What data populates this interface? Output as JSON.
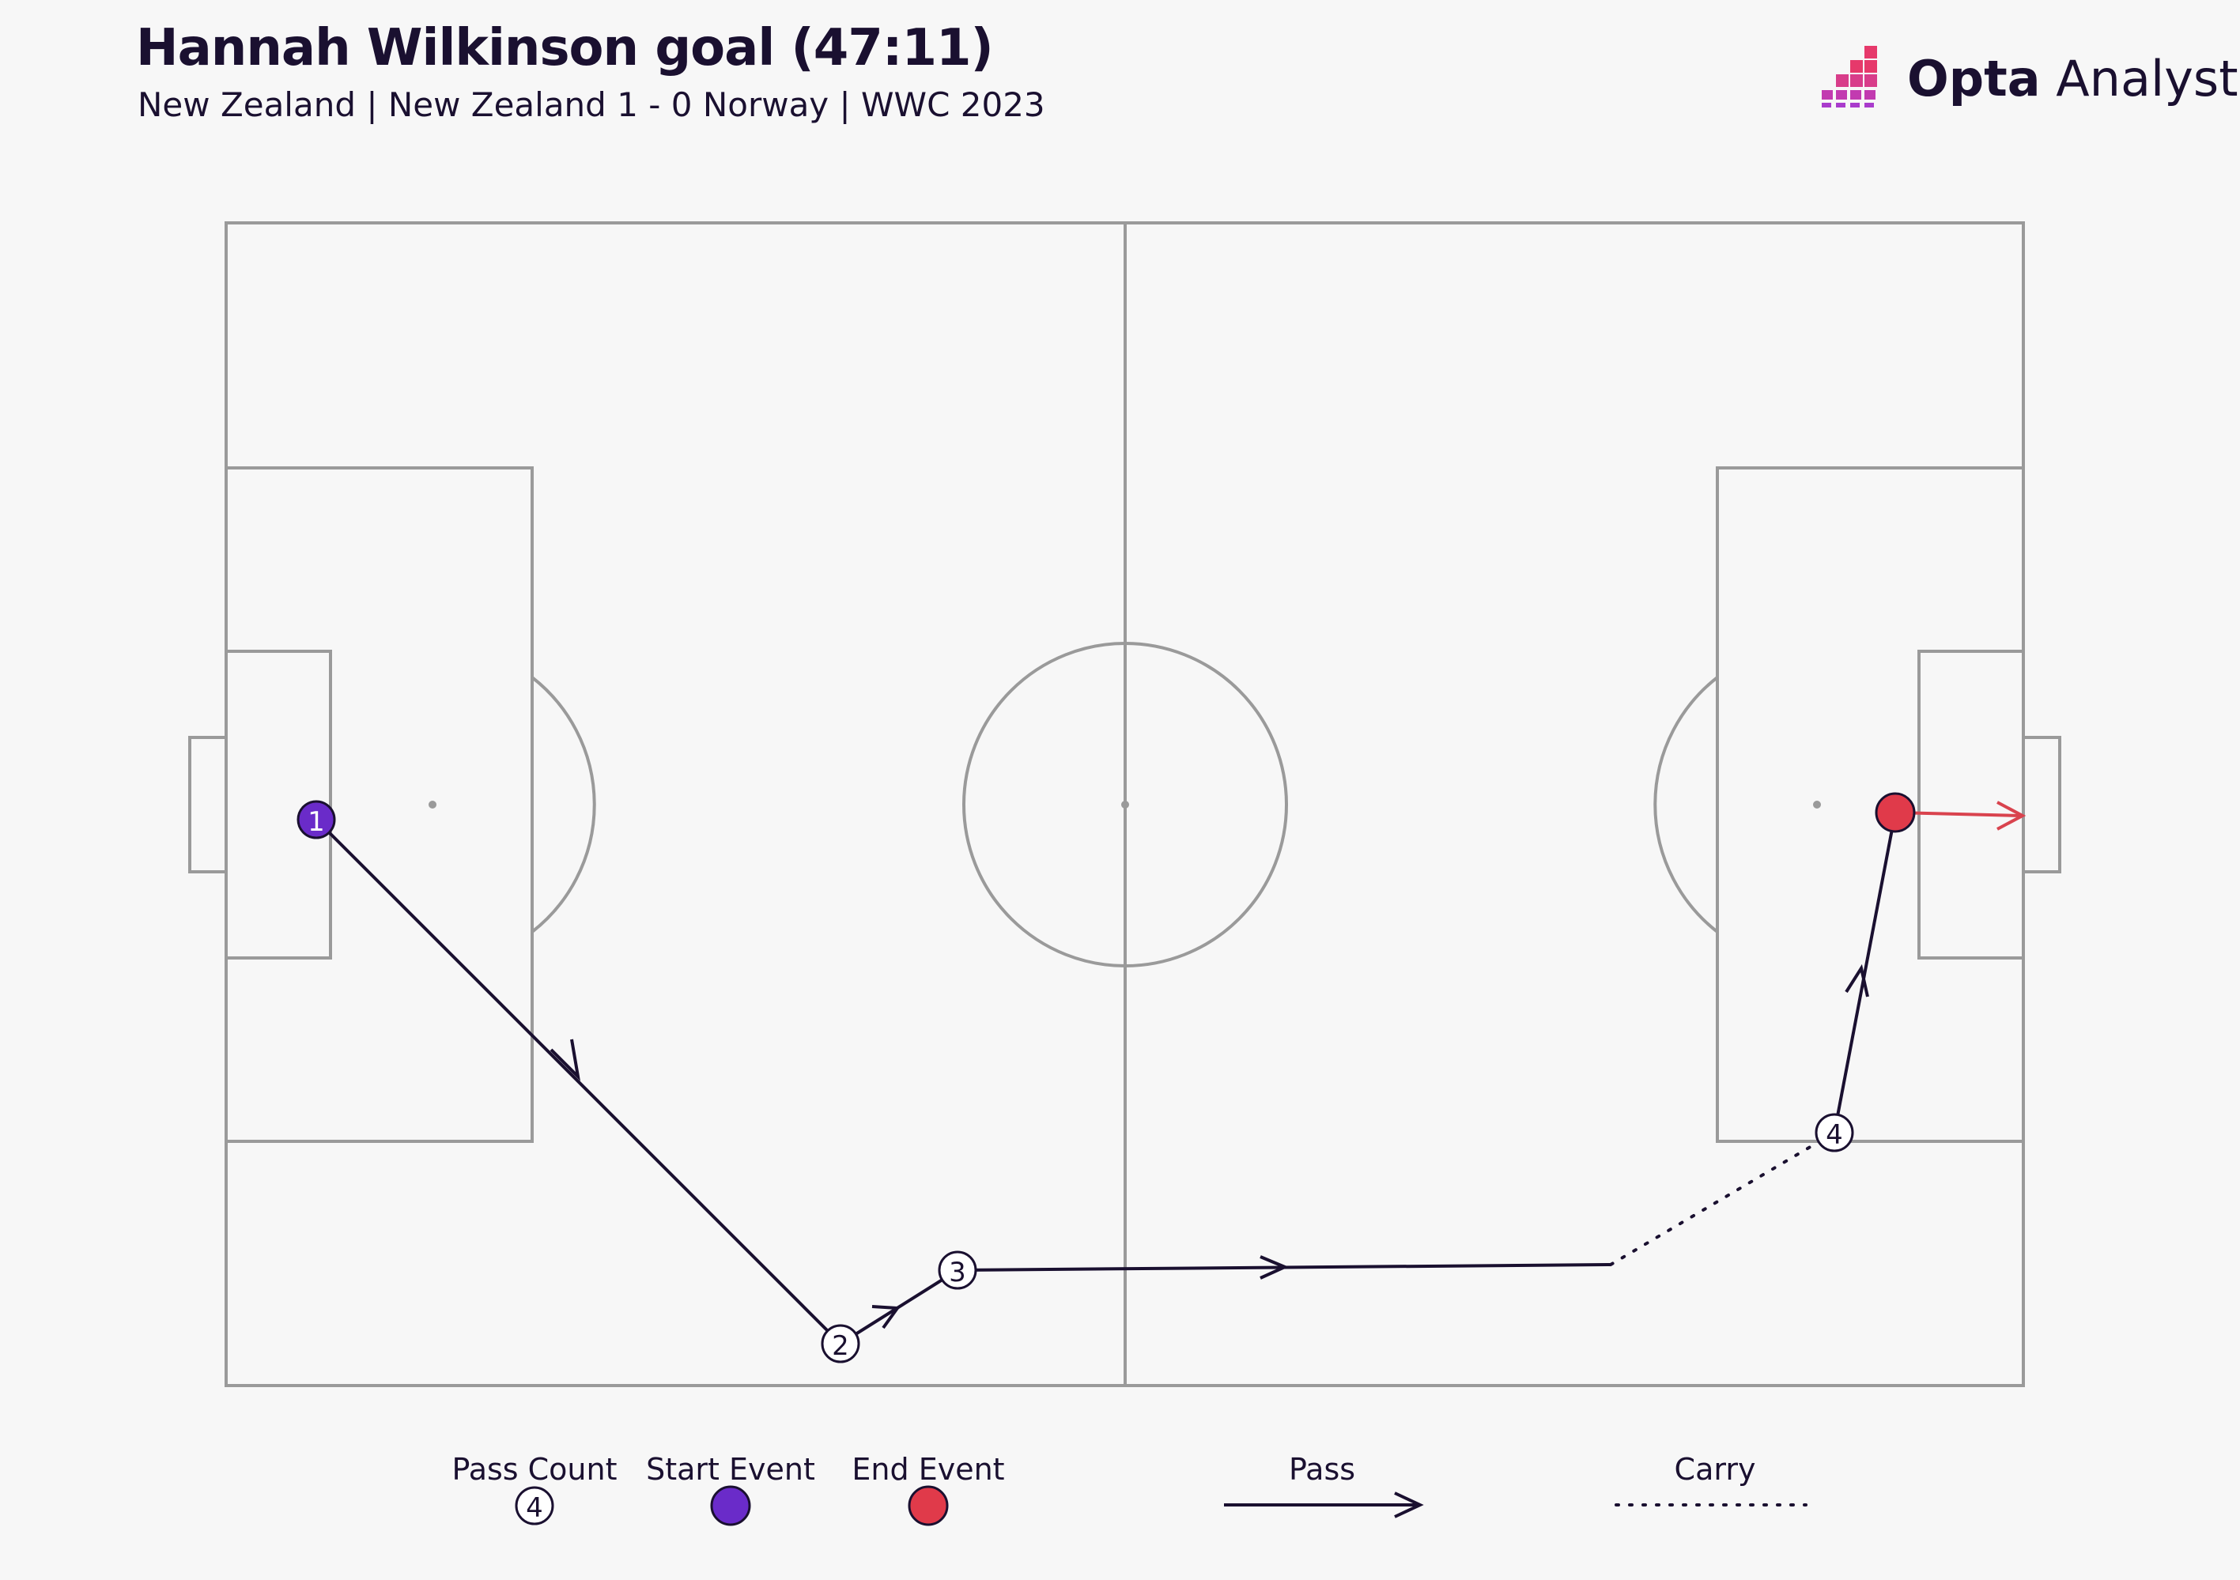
{
  "header": {
    "title": "Hannah Wilkinson goal (47:11)",
    "subtitle": "New Zealand | New Zealand 1 - 0 Norway | WWC 2023"
  },
  "logo": {
    "bold": "Opta",
    "regular": " Analyst",
    "icon": "opta-bars-icon"
  },
  "colors": {
    "background": "#f7f7f7",
    "pitch_lines": "#9a9a9a",
    "pass": "#1a1030",
    "start_event": "#6a2bc9",
    "end_event": "#e03a4a",
    "shot": "#d9434e"
  },
  "events": [
    {
      "type": "pass",
      "from": 1,
      "to": 2
    },
    {
      "type": "pass",
      "from": 2,
      "to": 3
    },
    {
      "type": "pass",
      "from": 3,
      "to": "carry_start"
    },
    {
      "type": "carry",
      "from": "carry_start",
      "to": 4
    },
    {
      "type": "pass",
      "from": 4,
      "to": "end"
    },
    {
      "type": "shot",
      "from": "end",
      "to": "goal"
    }
  ],
  "nodes": [
    {
      "id": 1,
      "label": "1",
      "kind": "start"
    },
    {
      "id": 2,
      "label": "2",
      "kind": "pass_count"
    },
    {
      "id": 3,
      "label": "3",
      "kind": "pass_count"
    },
    {
      "id": 4,
      "label": "4",
      "kind": "pass_count"
    },
    {
      "id": "end",
      "label": "",
      "kind": "end"
    }
  ],
  "legend": {
    "pass_count_label": "Pass Count",
    "pass_count_sample": "4",
    "start_event_label": "Start Event",
    "end_event_label": "End Event",
    "pass_label": "Pass",
    "carry_label": "Carry"
  }
}
